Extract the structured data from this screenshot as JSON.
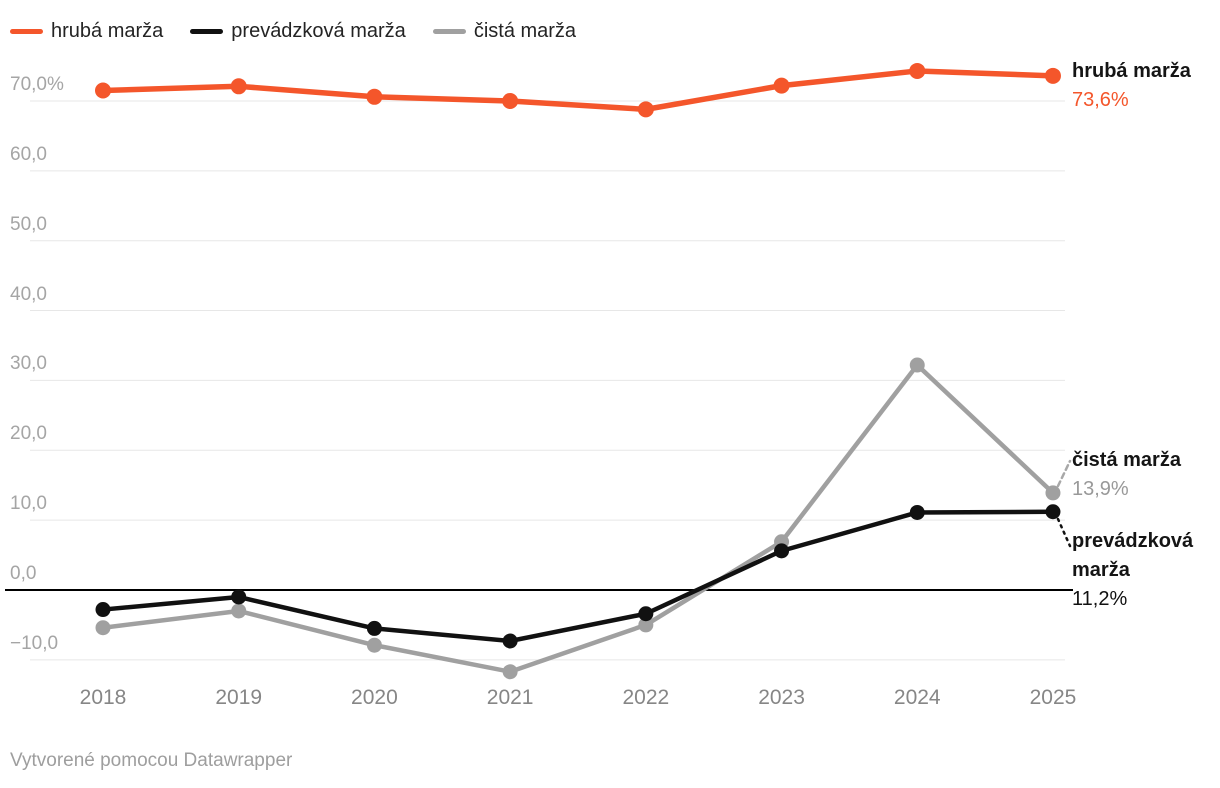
{
  "chart_data": {
    "type": "line",
    "x_labels": [
      "2018",
      "2019",
      "2020",
      "2021",
      "2022",
      "2023",
      "2024",
      "2025"
    ],
    "y_ticks": [
      {
        "label": "70,0%",
        "value": 70
      },
      {
        "label": "60,0",
        "value": 60
      },
      {
        "label": "50,0",
        "value": 50
      },
      {
        "label": "40,0",
        "value": 40
      },
      {
        "label": "30,0",
        "value": 30
      },
      {
        "label": "20,0",
        "value": 20
      },
      {
        "label": "10,0",
        "value": 10
      },
      {
        "label": "0,0",
        "value": 0
      },
      {
        "label": "−10,0",
        "value": -10
      }
    ],
    "ylim": [
      -14,
      76
    ],
    "grid": true,
    "legend_position": "top-left",
    "series": [
      {
        "name": "hrubá marža",
        "color": "#f4562b",
        "values": [
          71.5,
          72.1,
          70.6,
          70.0,
          68.8,
          72.2,
          74.3,
          73.6
        ]
      },
      {
        "name": "prevádzková marža",
        "color": "#111111",
        "values": [
          -2.8,
          -1.0,
          -5.5,
          -7.3,
          -3.4,
          5.6,
          11.1,
          11.2
        ]
      },
      {
        "name": "čistá marža",
        "color": "#a0a0a0",
        "values": [
          -5.4,
          -3.0,
          -7.9,
          -11.7,
          -5.0,
          6.9,
          32.2,
          13.9
        ]
      }
    ]
  },
  "end_labels": [
    {
      "name": "hrubá marža",
      "value": "73,6%"
    },
    {
      "name": "čistá marža",
      "value": "13,9%"
    },
    {
      "name": "prevádzková marža",
      "value": "11,2%"
    }
  ],
  "footer": {
    "credit": "Vytvorené pomocou Datawrapper"
  }
}
